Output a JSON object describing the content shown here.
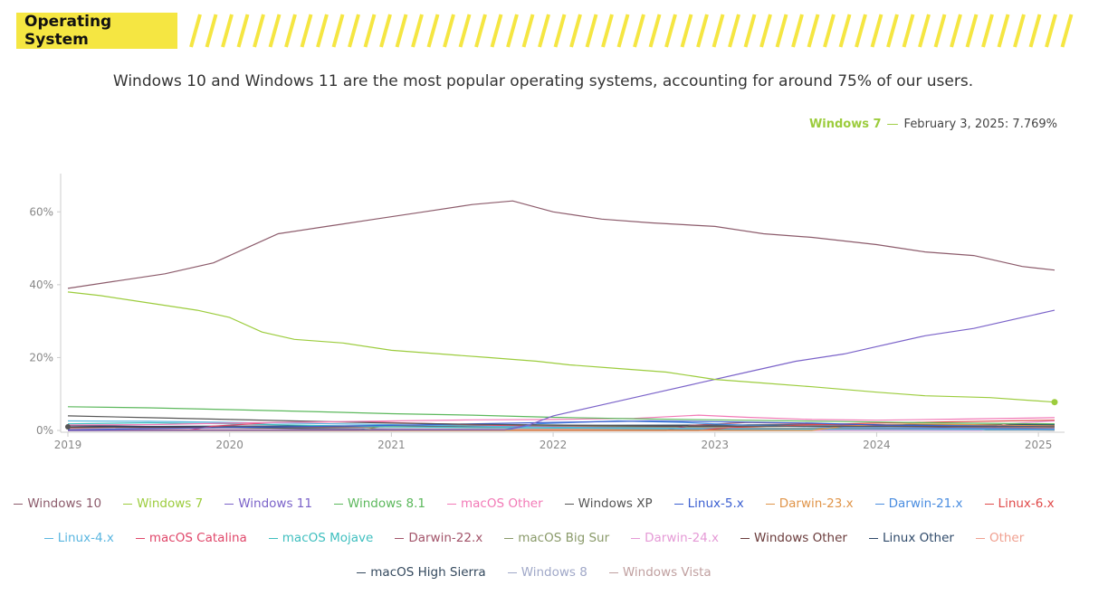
{
  "header": {
    "title": "Operating System",
    "accent": "#f5e642"
  },
  "subtitle": "Windows 10 and Windows 11 are the most popular operating systems, accounting for around 75% of our users.",
  "tooltip": {
    "series": "Windows 7",
    "date": "February 3, 2025",
    "value": "7.769%",
    "color": "#9ccc3d"
  },
  "chart_data": {
    "type": "line",
    "x_ticks": [
      "2019",
      "2020",
      "2021",
      "2022",
      "2023",
      "2024",
      "2025"
    ],
    "y_ticks": [
      "0%",
      "20%",
      "40%",
      "60%"
    ],
    "ylim": [
      0,
      70
    ],
    "xlim": [
      2019.0,
      2025.1
    ],
    "series": [
      {
        "name": "Windows 10",
        "color": "#8c5b6b",
        "points": [
          [
            2019.0,
            39
          ],
          [
            2019.3,
            41
          ],
          [
            2019.6,
            43
          ],
          [
            2019.9,
            46
          ],
          [
            2020.1,
            50
          ],
          [
            2020.3,
            54
          ],
          [
            2020.6,
            56
          ],
          [
            2020.9,
            58
          ],
          [
            2021.2,
            60
          ],
          [
            2021.5,
            62
          ],
          [
            2021.75,
            63
          ],
          [
            2022.0,
            60
          ],
          [
            2022.3,
            58
          ],
          [
            2022.6,
            57
          ],
          [
            2023.0,
            56
          ],
          [
            2023.3,
            54
          ],
          [
            2023.6,
            53
          ],
          [
            2024.0,
            51
          ],
          [
            2024.3,
            49
          ],
          [
            2024.6,
            48
          ],
          [
            2024.9,
            45
          ],
          [
            2025.1,
            44
          ]
        ]
      },
      {
        "name": "Windows 7",
        "color": "#9ccc3d",
        "points": [
          [
            2019.0,
            38
          ],
          [
            2019.2,
            37
          ],
          [
            2019.5,
            35
          ],
          [
            2019.8,
            33
          ],
          [
            2020.0,
            31
          ],
          [
            2020.2,
            27
          ],
          [
            2020.4,
            25
          ],
          [
            2020.7,
            24
          ],
          [
            2021.0,
            22
          ],
          [
            2021.3,
            21
          ],
          [
            2021.6,
            20
          ],
          [
            2021.9,
            19
          ],
          [
            2022.1,
            18
          ],
          [
            2022.4,
            17
          ],
          [
            2022.7,
            16
          ],
          [
            2023.0,
            14
          ],
          [
            2023.3,
            13
          ],
          [
            2023.6,
            12
          ],
          [
            2024.0,
            10.5
          ],
          [
            2024.3,
            9.5
          ],
          [
            2024.7,
            9
          ],
          [
            2025.1,
            7.769
          ]
        ]
      },
      {
        "name": "Windows 11",
        "color": "#7b63c9",
        "points": [
          [
            2019.0,
            0
          ],
          [
            2021.7,
            0.2
          ],
          [
            2021.85,
            1.5
          ],
          [
            2022.0,
            4
          ],
          [
            2022.3,
            7
          ],
          [
            2022.6,
            10
          ],
          [
            2022.9,
            13
          ],
          [
            2023.2,
            16
          ],
          [
            2023.5,
            19
          ],
          [
            2023.8,
            21
          ],
          [
            2024.0,
            23
          ],
          [
            2024.3,
            26
          ],
          [
            2024.6,
            28
          ],
          [
            2024.9,
            31
          ],
          [
            2025.1,
            33
          ]
        ]
      },
      {
        "name": "Windows 8.1",
        "color": "#5cb85c",
        "points": [
          [
            2019.0,
            6.5
          ],
          [
            2019.5,
            6.2
          ],
          [
            2020.0,
            5.7
          ],
          [
            2020.5,
            5.2
          ],
          [
            2021.0,
            4.6
          ],
          [
            2021.5,
            4.2
          ],
          [
            2022.0,
            3.6
          ],
          [
            2022.5,
            3.2
          ],
          [
            2023.0,
            2.9
          ],
          [
            2023.5,
            2.6
          ],
          [
            2024.0,
            2.3
          ],
          [
            2024.5,
            2.0
          ],
          [
            2025.1,
            1.8
          ]
        ]
      },
      {
        "name": "macOS Other",
        "color": "#f279b6",
        "points": [
          [
            2019.0,
            1.5
          ],
          [
            2019.5,
            1.6
          ],
          [
            2020.0,
            2.0
          ],
          [
            2020.5,
            2.3
          ],
          [
            2021.0,
            2.6
          ],
          [
            2021.5,
            2.9
          ],
          [
            2022.0,
            3.0
          ],
          [
            2022.5,
            3.3
          ],
          [
            2022.9,
            4.2
          ],
          [
            2023.2,
            3.6
          ],
          [
            2023.6,
            3.0
          ],
          [
            2024.0,
            2.8
          ],
          [
            2024.5,
            3.1
          ],
          [
            2025.1,
            3.5
          ]
        ]
      },
      {
        "name": "Windows XP",
        "color": "#555555",
        "points": [
          [
            2019.0,
            4
          ],
          [
            2019.5,
            3.5
          ],
          [
            2020.0,
            3.0
          ],
          [
            2020.5,
            2.5
          ],
          [
            2021.0,
            2.0
          ],
          [
            2021.5,
            1.7
          ],
          [
            2022.0,
            1.5
          ],
          [
            2022.5,
            1.3
          ],
          [
            2023.0,
            1.2
          ],
          [
            2024.0,
            1.1
          ],
          [
            2025.1,
            1.0
          ]
        ]
      },
      {
        "name": "Linux-5.x",
        "color": "#3b5fd1",
        "points": [
          [
            2019.0,
            0.2
          ],
          [
            2020.0,
            0.8
          ],
          [
            2021.0,
            1.4
          ],
          [
            2022.0,
            2.2
          ],
          [
            2022.6,
            2.6
          ],
          [
            2023.0,
            2.4
          ],
          [
            2023.6,
            2.0
          ],
          [
            2024.0,
            1.5
          ],
          [
            2025.1,
            1.0
          ]
        ]
      },
      {
        "name": "Darwin-23.x",
        "color": "#e0954a",
        "points": [
          [
            2019.0,
            0
          ],
          [
            2023.6,
            0
          ],
          [
            2023.8,
            1.2
          ],
          [
            2024.2,
            1.8
          ],
          [
            2024.6,
            1.6
          ],
          [
            2025.1,
            1.2
          ]
        ]
      },
      {
        "name": "Darwin-21.x",
        "color": "#4a8de0",
        "points": [
          [
            2019.0,
            0
          ],
          [
            2021.7,
            0
          ],
          [
            2021.9,
            1.8
          ],
          [
            2022.4,
            2.6
          ],
          [
            2022.8,
            2.2
          ],
          [
            2023.2,
            1.4
          ],
          [
            2023.8,
            0.8
          ],
          [
            2025.1,
            0.4
          ]
        ]
      },
      {
        "name": "Linux-6.x",
        "color": "#e04a4a",
        "points": [
          [
            2019.0,
            0
          ],
          [
            2022.9,
            0
          ],
          [
            2023.1,
            0.8
          ],
          [
            2023.6,
            1.6
          ],
          [
            2024.0,
            2.0
          ],
          [
            2024.5,
            2.4
          ],
          [
            2025.1,
            2.8
          ]
        ]
      },
      {
        "name": "Linux-4.x",
        "color": "#5ab6e0",
        "points": [
          [
            2019.0,
            2.6
          ],
          [
            2019.5,
            2.5
          ],
          [
            2020.0,
            2.2
          ],
          [
            2020.5,
            1.9
          ],
          [
            2021.0,
            1.6
          ],
          [
            2021.5,
            1.2
          ],
          [
            2022.0,
            0.9
          ],
          [
            2023.0,
            0.5
          ],
          [
            2024.0,
            0.3
          ],
          [
            2025.1,
            0.2
          ]
        ]
      },
      {
        "name": "macOS Catalina",
        "color": "#e0476a",
        "points": [
          [
            2019.0,
            0
          ],
          [
            2019.75,
            0.1
          ],
          [
            2019.9,
            1.2
          ],
          [
            2020.3,
            2.2
          ],
          [
            2020.8,
            2.4
          ],
          [
            2021.3,
            1.8
          ],
          [
            2021.8,
            1.2
          ],
          [
            2022.5,
            0.7
          ],
          [
            2023.5,
            0.4
          ],
          [
            2025.1,
            0.2
          ]
        ]
      },
      {
        "name": "macOS Mojave",
        "color": "#3fbfbf",
        "points": [
          [
            2019.0,
            1.8
          ],
          [
            2019.5,
            2.1
          ],
          [
            2020.0,
            1.8
          ],
          [
            2020.5,
            1.4
          ],
          [
            2021.0,
            1.0
          ],
          [
            2021.5,
            0.8
          ],
          [
            2022.5,
            0.5
          ],
          [
            2023.5,
            0.3
          ],
          [
            2025.1,
            0.2
          ]
        ]
      },
      {
        "name": "Darwin-22.x",
        "color": "#a3546a",
        "points": [
          [
            2019.0,
            0
          ],
          [
            2022.7,
            0
          ],
          [
            2022.85,
            1.4
          ],
          [
            2023.2,
            2.2
          ],
          [
            2023.6,
            1.8
          ],
          [
            2024.0,
            1.2
          ],
          [
            2024.5,
            0.8
          ],
          [
            2025.1,
            0.5
          ]
        ]
      },
      {
        "name": "macOS Big Sur",
        "color": "#8a9a6a",
        "points": [
          [
            2019.0,
            0
          ],
          [
            2020.8,
            0
          ],
          [
            2020.95,
            1.2
          ],
          [
            2021.3,
            1.6
          ],
          [
            2021.8,
            1.3
          ],
          [
            2022.5,
            0.9
          ],
          [
            2023.5,
            0.6
          ],
          [
            2025.1,
            0.4
          ]
        ]
      },
      {
        "name": "Darwin-24.x",
        "color": "#e59ad6",
        "points": [
          [
            2019.0,
            0
          ],
          [
            2024.65,
            0
          ],
          [
            2024.8,
            1.8
          ],
          [
            2025.1,
            2.6
          ]
        ]
      },
      {
        "name": "Windows Other",
        "color": "#6a3b3b",
        "points": [
          [
            2019.0,
            0.8
          ],
          [
            2020.0,
            0.9
          ],
          [
            2021.0,
            1.0
          ],
          [
            2022.0,
            1.1
          ],
          [
            2023.0,
            1.1
          ],
          [
            2024.0,
            1.2
          ],
          [
            2025.1,
            1.3
          ]
        ]
      },
      {
        "name": "Linux Other",
        "color": "#2f4a6a",
        "points": [
          [
            2019.0,
            1.0
          ],
          [
            2020.0,
            1.2
          ],
          [
            2021.0,
            1.3
          ],
          [
            2022.0,
            1.4
          ],
          [
            2023.0,
            1.5
          ],
          [
            2024.0,
            1.6
          ],
          [
            2025.1,
            1.6
          ]
        ]
      },
      {
        "name": "Other",
        "color": "#f0a090",
        "points": [
          [
            2019.0,
            0.5
          ],
          [
            2019.5,
            0.3
          ],
          [
            2020.0,
            0.2
          ],
          [
            2022.0,
            0.3
          ],
          [
            2023.0,
            0.4
          ],
          [
            2024.0,
            0.6
          ],
          [
            2025.1,
            0.8
          ]
        ]
      },
      {
        "name": "macOS High Sierra",
        "color": "#34495e",
        "points": [
          [
            2019.0,
            1.4
          ],
          [
            2019.5,
            1.1
          ],
          [
            2020.0,
            0.8
          ],
          [
            2020.5,
            0.5
          ],
          [
            2021.0,
            0.3
          ],
          [
            2022.0,
            0.2
          ],
          [
            2025.1,
            0.1
          ]
        ]
      },
      {
        "name": "Windows 8",
        "color": "#a0a8c8",
        "points": [
          [
            2019.0,
            0.9
          ],
          [
            2020.0,
            0.7
          ],
          [
            2021.0,
            0.5
          ],
          [
            2022.0,
            0.4
          ],
          [
            2023.0,
            0.3
          ],
          [
            2025.1,
            0.2
          ]
        ]
      },
      {
        "name": "Windows Vista",
        "color": "#c0a0a0",
        "points": [
          [
            2019.0,
            0.3
          ],
          [
            2020.0,
            0.25
          ],
          [
            2021.0,
            0.2
          ],
          [
            2022.0,
            0.15
          ],
          [
            2025.1,
            0.1
          ]
        ]
      }
    ],
    "highlight": {
      "series": "Windows 7",
      "x": 2025.1,
      "y": 7.769
    }
  },
  "legend_rows": [
    [
      "Windows 10",
      "Windows 7",
      "Windows 11",
      "Windows 8.1",
      "macOS Other",
      "Windows XP",
      "Linux-5.x",
      "Darwin-23.x",
      "Darwin-21.x",
      "Linux-6.x"
    ],
    [
      "Linux-4.x",
      "macOS Catalina",
      "macOS Mojave",
      "Darwin-22.x",
      "macOS Big Sur",
      "Darwin-24.x",
      "Windows Other",
      "Linux Other",
      "Other"
    ],
    [
      "macOS High Sierra",
      "Windows 8",
      "Windows Vista"
    ]
  ]
}
